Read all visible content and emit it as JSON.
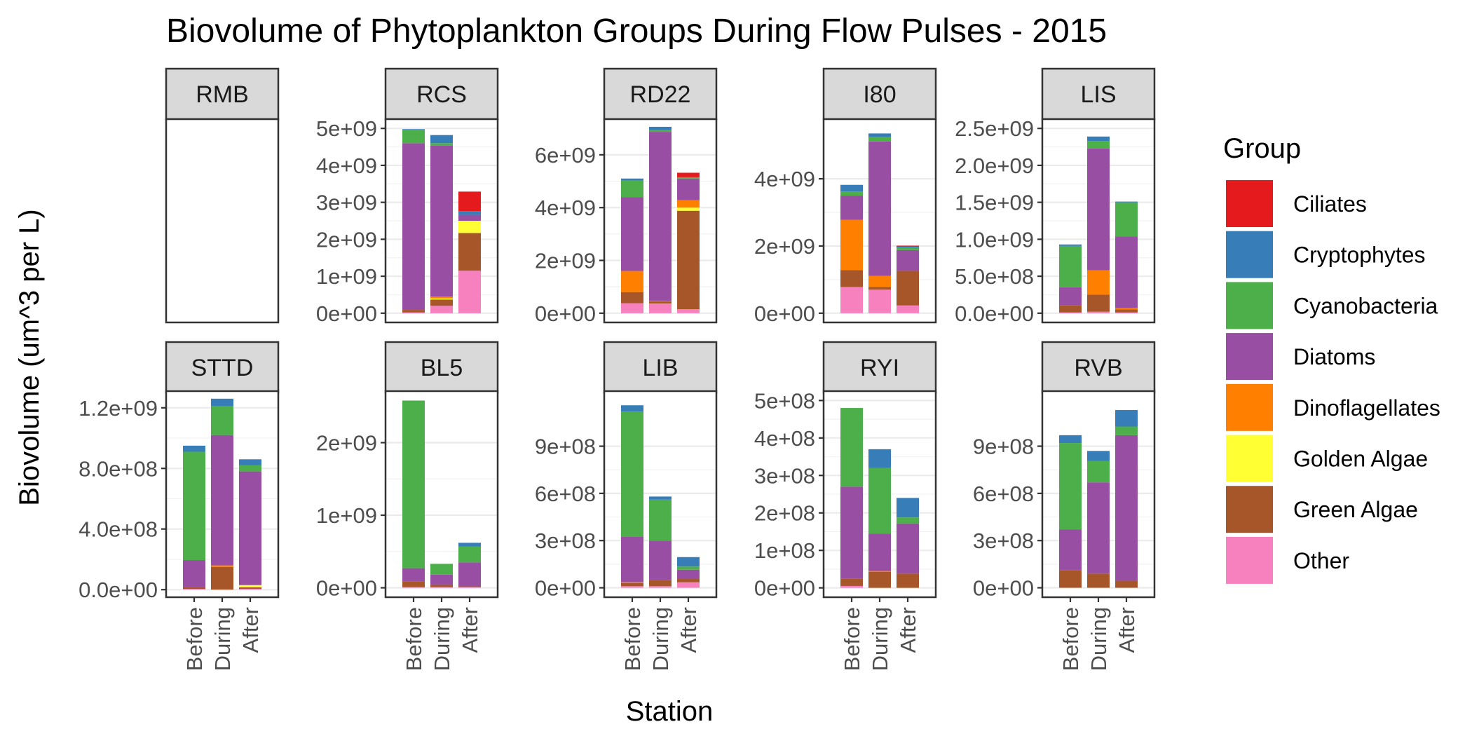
{
  "chart_data": {
    "type": "bar",
    "stacked": true,
    "title": "Biovolume of Phytoplankton Groups During Flow Pulses - 2015",
    "xlabel": "Station",
    "ylabel": "Biovolume (um^3 per L)",
    "categories": [
      "Before",
      "During",
      "After"
    ],
    "legend": {
      "title": "Group",
      "placement": "right",
      "entries": [
        {
          "name": "Ciliates",
          "color": "#E41A1C"
        },
        {
          "name": "Cryptophytes",
          "color": "#377EB8"
        },
        {
          "name": "Cyanobacteria",
          "color": "#4DAF4A"
        },
        {
          "name": "Diatoms",
          "color": "#984EA3"
        },
        {
          "name": "Dinoflagellates",
          "color": "#FF7F00"
        },
        {
          "name": "Golden Algae",
          "color": "#FFFF33"
        },
        {
          "name": "Green Algae",
          "color": "#A65628"
        },
        {
          "name": "Other",
          "color": "#F781BF"
        }
      ]
    },
    "stack_order_bottom_to_top": [
      "Other",
      "Green Algae",
      "Golden Algae",
      "Dinoflagellates",
      "Diatoms",
      "Cyanobacteria",
      "Cryptophytes",
      "Ciliates"
    ],
    "grid": true,
    "facets": [
      {
        "station": "RMB",
        "ylim": [
          0,
          1
        ],
        "ticks": [],
        "tick_labels": [],
        "bars": {}
      },
      {
        "station": "RCS",
        "ylim": [
          -250000000,
          5250000000
        ],
        "ticks": [
          0,
          1000000000,
          2000000000,
          3000000000,
          4000000000,
          5000000000
        ],
        "tick_labels": [
          "0e+00",
          "1e+09",
          "2e+09",
          "3e+09",
          "4e+09",
          "5e+09"
        ],
        "bars": {
          "Before": {
            "Other": 20000000,
            "Green Algae": 70000000,
            "Golden Algae": 0,
            "Dinoflagellates": 0,
            "Diatoms": 4510000000,
            "Cyanobacteria": 360000000,
            "Cryptophytes": 20000000,
            "Ciliates": 0
          },
          "During": {
            "Other": 200000000,
            "Green Algae": 170000000,
            "Golden Algae": 30000000,
            "Dinoflagellates": 50000000,
            "Diatoms": 4080000000,
            "Cyanobacteria": 70000000,
            "Cryptophytes": 220000000,
            "Ciliates": 0
          },
          "After": {
            "Other": 1150000000,
            "Green Algae": 1020000000,
            "Golden Algae": 330000000,
            "Dinoflagellates": 0,
            "Diatoms": 160000000,
            "Cyanobacteria": 0,
            "Cryptophytes": 100000000,
            "Ciliates": 530000000
          }
        }
      },
      {
        "station": "RD22",
        "ylim": [
          -350000000,
          7350000000
        ],
        "ticks": [
          0,
          2000000000,
          4000000000,
          6000000000
        ],
        "tick_labels": [
          "0e+00",
          "2e+09",
          "4e+09",
          "6e+09"
        ],
        "bars": {
          "Before": {
            "Other": 380000000,
            "Green Algae": 420000000,
            "Golden Algae": 0,
            "Dinoflagellates": 800000000,
            "Diatoms": 2800000000,
            "Cyanobacteria": 620000000,
            "Cryptophytes": 80000000,
            "Ciliates": 0
          },
          "During": {
            "Other": 370000000,
            "Green Algae": 80000000,
            "Golden Algae": 0,
            "Dinoflagellates": 20000000,
            "Diatoms": 6400000000,
            "Cyanobacteria": 70000000,
            "Cryptophytes": 120000000,
            "Ciliates": 0
          },
          "After": {
            "Other": 150000000,
            "Green Algae": 3730000000,
            "Golden Algae": 120000000,
            "Dinoflagellates": 280000000,
            "Diatoms": 820000000,
            "Cyanobacteria": 50000000,
            "Cryptophytes": 0,
            "Ciliates": 170000000
          }
        }
      },
      {
        "station": "I80",
        "ylim": [
          -275000000,
          5775000000
        ],
        "ticks": [
          0,
          2000000000,
          4000000000
        ],
        "tick_labels": [
          "0e+00",
          "2e+09",
          "4e+09"
        ],
        "bars": {
          "Before": {
            "Other": 780000000,
            "Green Algae": 500000000,
            "Golden Algae": 0,
            "Dinoflagellates": 1500000000,
            "Diatoms": 720000000,
            "Cyanobacteria": 120000000,
            "Cryptophytes": 200000000,
            "Ciliates": 0
          },
          "During": {
            "Other": 700000000,
            "Green Algae": 80000000,
            "Golden Algae": 0,
            "Dinoflagellates": 330000000,
            "Diatoms": 4000000000,
            "Cyanobacteria": 130000000,
            "Cryptophytes": 110000000,
            "Ciliates": 0
          },
          "After": {
            "Other": 230000000,
            "Green Algae": 1030000000,
            "Golden Algae": 0,
            "Dinoflagellates": 0,
            "Diatoms": 620000000,
            "Cyanobacteria": 70000000,
            "Cryptophytes": 30000000,
            "Ciliates": 30000000
          }
        }
      },
      {
        "station": "LIS",
        "ylim": [
          -125000000,
          2625000000
        ],
        "ticks": [
          0,
          500000000,
          1000000000,
          1500000000,
          2000000000,
          2500000000
        ],
        "tick_labels": [
          "0.0e+00",
          "5.0e+08",
          "1.0e+09",
          "1.5e+09",
          "2.0e+09",
          "2.5e+09"
        ],
        "bars": {
          "Before": {
            "Other": 10000000,
            "Green Algae": 100000000,
            "Golden Algae": 0,
            "Dinoflagellates": 0,
            "Diatoms": 240000000,
            "Cyanobacteria": 560000000,
            "Cryptophytes": 20000000,
            "Ciliates": 0
          },
          "During": {
            "Other": 20000000,
            "Green Algae": 230000000,
            "Golden Algae": 0,
            "Dinoflagellates": 330000000,
            "Diatoms": 1650000000,
            "Cyanobacteria": 100000000,
            "Cryptophytes": 60000000,
            "Ciliates": 0
          },
          "After": {
            "Other": 10000000,
            "Green Algae": 40000000,
            "Golden Algae": 0,
            "Dinoflagellates": 20000000,
            "Diatoms": 970000000,
            "Cyanobacteria": 460000000,
            "Cryptophytes": 10000000,
            "Ciliates": 0
          }
        }
      },
      {
        "station": "STTD",
        "ylim": [
          -50000000,
          1310000000
        ],
        "ticks": [
          0,
          400000000,
          800000000,
          1200000000
        ],
        "tick_labels": [
          "0.0e+00",
          "4.0e+08",
          "8.0e+08",
          "1.2e+09"
        ],
        "bars": {
          "Before": {
            "Other": 5000000,
            "Green Algae": 10000000,
            "Golden Algae": 0,
            "Dinoflagellates": 0,
            "Diatoms": 180000000,
            "Cyanobacteria": 715000000,
            "Cryptophytes": 40000000,
            "Ciliates": 0
          },
          "During": {
            "Other": 0,
            "Green Algae": 150000000,
            "Golden Algae": 0,
            "Dinoflagellates": 10000000,
            "Diatoms": 860000000,
            "Cyanobacteria": 190000000,
            "Cryptophytes": 50000000,
            "Ciliates": 0
          },
          "After": {
            "Other": 5000000,
            "Green Algae": 10000000,
            "Golden Algae": 15000000,
            "Dinoflagellates": 0,
            "Diatoms": 750000000,
            "Cyanobacteria": 40000000,
            "Cryptophytes": 40000000,
            "Ciliates": 0
          }
        }
      },
      {
        "station": "BL5",
        "ylim": [
          -130000000,
          2710000000
        ],
        "ticks": [
          0,
          1000000000,
          2000000000
        ],
        "tick_labels": [
          "0e+00",
          "1e+09",
          "2e+09"
        ],
        "bars": {
          "Before": {
            "Other": 10000000,
            "Green Algae": 80000000,
            "Golden Algae": 0,
            "Dinoflagellates": 0,
            "Diatoms": 180000000,
            "Cyanobacteria": 2310000000,
            "Cryptophytes": 0,
            "Ciliates": 0
          },
          "During": {
            "Other": 10000000,
            "Green Algae": 30000000,
            "Golden Algae": 0,
            "Dinoflagellates": 0,
            "Diatoms": 140000000,
            "Cyanobacteria": 150000000,
            "Cryptophytes": 0,
            "Ciliates": 0
          },
          "After": {
            "Other": 10000000,
            "Green Algae": 10000000,
            "Golden Algae": 0,
            "Dinoflagellates": 0,
            "Diatoms": 330000000,
            "Cyanobacteria": 220000000,
            "Cryptophytes": 50000000,
            "Ciliates": 0
          }
        }
      },
      {
        "station": "LIB",
        "ylim": [
          -60000000,
          1250000000
        ],
        "ticks": [
          0,
          300000000,
          600000000,
          900000000
        ],
        "tick_labels": [
          "0e+00",
          "3e+08",
          "6e+08",
          "9e+08"
        ],
        "bars": {
          "Before": {
            "Other": 10000000,
            "Green Algae": 20000000,
            "Golden Algae": 0,
            "Dinoflagellates": 5000000,
            "Diatoms": 290000000,
            "Cyanobacteria": 795000000,
            "Cryptophytes": 40000000,
            "Ciliates": 0
          },
          "During": {
            "Other": 10000000,
            "Green Algae": 40000000,
            "Golden Algae": 0,
            "Dinoflagellates": 0,
            "Diatoms": 250000000,
            "Cyanobacteria": 260000000,
            "Cryptophytes": 20000000,
            "Ciliates": 0
          },
          "After": {
            "Other": 35000000,
            "Green Algae": 25000000,
            "Golden Algae": 0,
            "Dinoflagellates": 0,
            "Diatoms": 55000000,
            "Cyanobacteria": 20000000,
            "Cryptophytes": 60000000,
            "Ciliates": 0
          }
        }
      },
      {
        "station": "RYI",
        "ylim": [
          -25000000,
          525000000
        ],
        "ticks": [
          0,
          100000000,
          200000000,
          300000000,
          400000000,
          500000000
        ],
        "tick_labels": [
          "0e+00",
          "1e+08",
          "2e+08",
          "3e+08",
          "4e+08",
          "5e+08"
        ],
        "bars": {
          "Before": {
            "Other": 5000000,
            "Green Algae": 20000000,
            "Golden Algae": 0,
            "Dinoflagellates": 0,
            "Diatoms": 245000000,
            "Cyanobacteria": 210000000,
            "Cryptophytes": 0,
            "Ciliates": 0
          },
          "During": {
            "Other": 0,
            "Green Algae": 43000000,
            "Golden Algae": 0,
            "Dinoflagellates": 2000000,
            "Diatoms": 100000000,
            "Cyanobacteria": 175000000,
            "Cryptophytes": 50000000,
            "Ciliates": 0
          },
          "After": {
            "Other": 0,
            "Green Algae": 38000000,
            "Golden Algae": 0,
            "Dinoflagellates": 0,
            "Diatoms": 134000000,
            "Cyanobacteria": 16000000,
            "Cryptophytes": 52000000,
            "Ciliates": 0
          }
        }
      },
      {
        "station": "RVB",
        "ylim": [
          -60000000,
          1250000000
        ],
        "ticks": [
          0,
          300000000,
          600000000,
          900000000
        ],
        "tick_labels": [
          "0e+00",
          "3e+08",
          "6e+08",
          "9e+08"
        ],
        "bars": {
          "Before": {
            "Other": 0,
            "Green Algae": 110000000,
            "Golden Algae": 0,
            "Dinoflagellates": 0,
            "Diatoms": 260000000,
            "Cyanobacteria": 550000000,
            "Cryptophytes": 50000000,
            "Ciliates": 0
          },
          "During": {
            "Other": 0,
            "Green Algae": 90000000,
            "Golden Algae": 0,
            "Dinoflagellates": 0,
            "Diatoms": 580000000,
            "Cyanobacteria": 135000000,
            "Cryptophytes": 65000000,
            "Ciliates": 0
          },
          "After": {
            "Other": 0,
            "Green Algae": 45000000,
            "Golden Algae": 0,
            "Dinoflagellates": 0,
            "Diatoms": 925000000,
            "Cyanobacteria": 55000000,
            "Cryptophytes": 105000000,
            "Ciliates": 0
          }
        }
      }
    ]
  }
}
